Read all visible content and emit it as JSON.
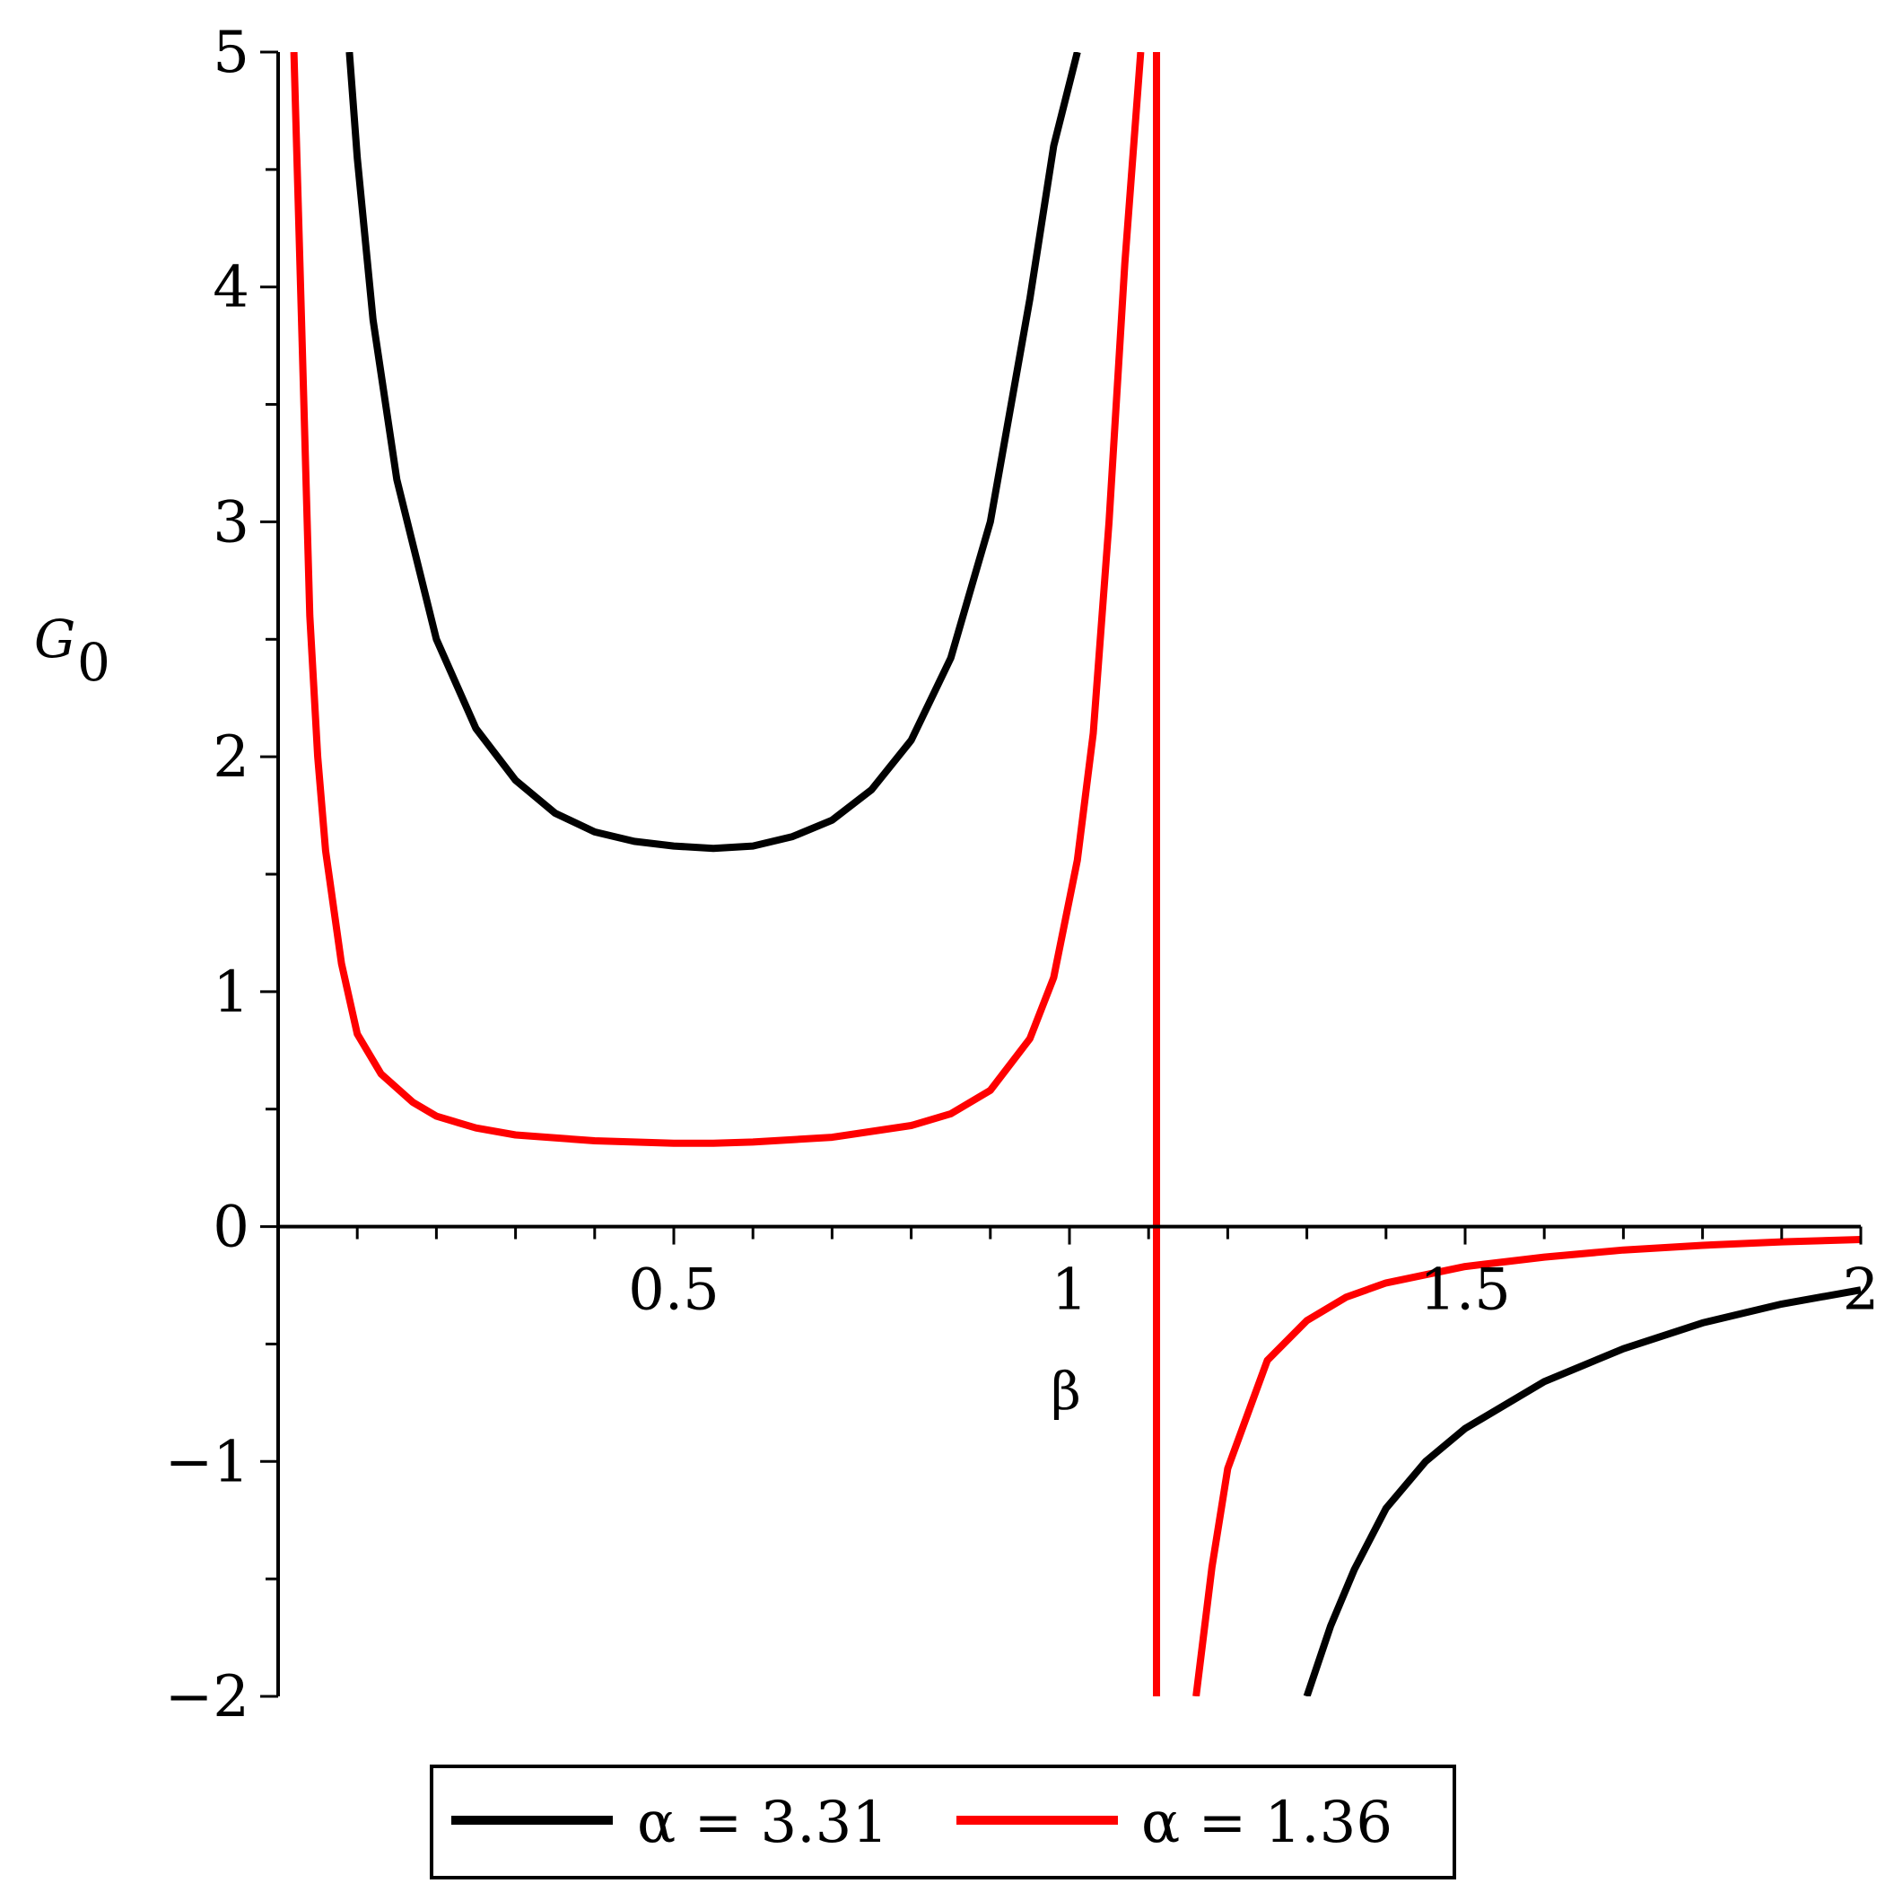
{
  "chart_data": {
    "type": "line",
    "xlabel": "β",
    "ylabel": "G",
    "ylabel_sub": "0",
    "xlim": [
      0,
      2
    ],
    "ylim": [
      -2,
      5
    ],
    "x_ticks": [
      0.5,
      1,
      1.5,
      2
    ],
    "x_tick_labels": [
      "0.5",
      "1",
      "1.5",
      "2"
    ],
    "y_ticks": [
      -2,
      -1,
      0,
      1,
      2,
      3,
      4,
      5
    ],
    "y_tick_labels": [
      "−2",
      "−1",
      "0",
      "1",
      "2",
      "3",
      "4",
      "5"
    ],
    "x_minor_step": 0.1,
    "y_minor_step": 0.5,
    "grid": false,
    "legend_position": "bottom-center",
    "vertical_asymptote": 1.11,
    "series": [
      {
        "name": "α = 3.31",
        "color": "#000000",
        "segments": [
          [
            [
              0.09,
              5.0
            ],
            [
              0.1,
              4.55
            ],
            [
              0.12,
              3.86
            ],
            [
              0.15,
              3.18
            ],
            [
              0.2,
              2.5
            ],
            [
              0.25,
              2.12
            ],
            [
              0.3,
              1.9
            ],
            [
              0.35,
              1.76
            ],
            [
              0.4,
              1.68
            ],
            [
              0.45,
              1.64
            ],
            [
              0.5,
              1.62
            ],
            [
              0.55,
              1.61
            ],
            [
              0.6,
              1.62
            ],
            [
              0.65,
              1.66
            ],
            [
              0.7,
              1.73
            ],
            [
              0.75,
              1.86
            ],
            [
              0.8,
              2.07
            ],
            [
              0.85,
              2.42
            ],
            [
              0.9,
              3.0
            ],
            [
              0.95,
              3.95
            ],
            [
              0.98,
              4.6
            ],
            [
              1.01,
              5.0
            ]
          ],
          [
            [
              1.3,
              -2.0
            ],
            [
              1.33,
              -1.7
            ],
            [
              1.36,
              -1.46
            ],
            [
              1.4,
              -1.2
            ],
            [
              1.45,
              -1.0
            ],
            [
              1.5,
              -0.86
            ],
            [
              1.6,
              -0.66
            ],
            [
              1.7,
              -0.52
            ],
            [
              1.8,
              -0.41
            ],
            [
              1.9,
              -0.33
            ],
            [
              2.0,
              -0.27
            ]
          ]
        ]
      },
      {
        "name": "α = 1.36",
        "color": "#ff0000",
        "segments": [
          [
            [
              0.02,
              5.0
            ],
            [
              0.03,
              3.8
            ],
            [
              0.04,
              2.6
            ],
            [
              0.05,
              2.0
            ],
            [
              0.06,
              1.6
            ],
            [
              0.08,
              1.12
            ],
            [
              0.1,
              0.82
            ],
            [
              0.13,
              0.65
            ],
            [
              0.17,
              0.53
            ],
            [
              0.2,
              0.47
            ],
            [
              0.25,
              0.42
            ],
            [
              0.3,
              0.39
            ],
            [
              0.4,
              0.365
            ],
            [
              0.5,
              0.355
            ],
            [
              0.55,
              0.355
            ],
            [
              0.6,
              0.36
            ],
            [
              0.7,
              0.38
            ],
            [
              0.8,
              0.43
            ],
            [
              0.85,
              0.48
            ],
            [
              0.9,
              0.58
            ],
            [
              0.95,
              0.8
            ],
            [
              0.98,
              1.06
            ],
            [
              1.01,
              1.56
            ],
            [
              1.03,
              2.1
            ],
            [
              1.05,
              3.0
            ],
            [
              1.07,
              4.1
            ],
            [
              1.09,
              5.0
            ]
          ],
          [
            [
              1.16,
              -2.0
            ],
            [
              1.18,
              -1.45
            ],
            [
              1.2,
              -1.03
            ],
            [
              1.25,
              -0.57
            ],
            [
              1.3,
              -0.4
            ],
            [
              1.35,
              -0.3
            ],
            [
              1.4,
              -0.24
            ],
            [
              1.5,
              -0.17
            ],
            [
              1.6,
              -0.13
            ],
            [
              1.7,
              -0.1
            ],
            [
              1.8,
              -0.08
            ],
            [
              1.9,
              -0.065
            ],
            [
              2.0,
              -0.055
            ]
          ]
        ]
      }
    ]
  }
}
